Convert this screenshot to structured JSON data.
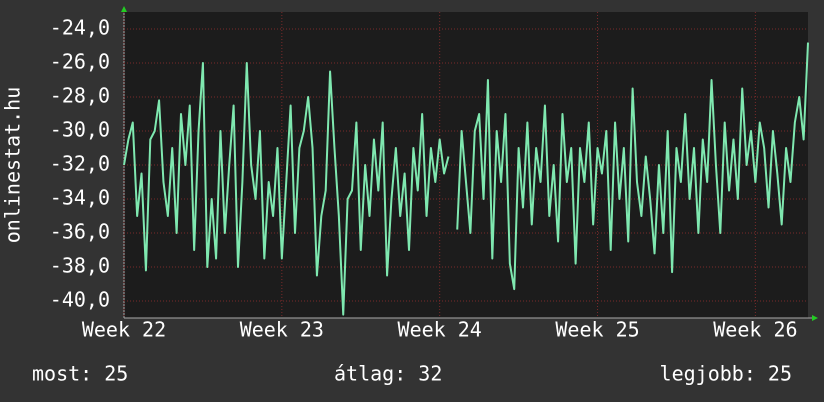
{
  "chart_data": {
    "type": "line",
    "y_label": "onlinestat.hu",
    "ylim": [
      -41,
      -23
    ],
    "yticks": [
      {
        "value": -24,
        "label": "-24,0"
      },
      {
        "value": -26,
        "label": "-26,0"
      },
      {
        "value": -28,
        "label": "-28,0"
      },
      {
        "value": -30,
        "label": "-30,0"
      },
      {
        "value": -32,
        "label": "-32,0"
      },
      {
        "value": -34,
        "label": "-34,0"
      },
      {
        "value": -36,
        "label": "-36,0"
      },
      {
        "value": -38,
        "label": "-38,0"
      },
      {
        "value": -40,
        "label": "-40,0"
      }
    ],
    "xlim": [
      0,
      156
    ],
    "xticks": [
      {
        "value": 0,
        "label": "Week 22"
      },
      {
        "value": 36,
        "label": "Week 23"
      },
      {
        "value": 72,
        "label": "Week 24"
      },
      {
        "value": 108,
        "label": "Week 25"
      },
      {
        "value": 144,
        "label": "Week 26"
      }
    ],
    "grid": true,
    "series": [
      {
        "color": "#7fe8b0",
        "values": [
          -32,
          -30.5,
          -29.5,
          -35,
          -32.5,
          -38.2,
          -30.5,
          -30,
          -28.2,
          -33,
          -35,
          -31,
          -36,
          -29,
          -32,
          -28.5,
          -37,
          -30,
          -26,
          -38,
          -34,
          -37.5,
          -30,
          -36,
          -32,
          -28.5,
          -38,
          -33,
          -26,
          -32,
          -34,
          -30,
          -37.5,
          -33,
          -35,
          -31,
          -37.5,
          -33,
          -28.5,
          -36,
          -31,
          -30,
          -28,
          -31,
          -38.5,
          -35,
          -33.5,
          -26.5,
          -31,
          -35,
          -40.8,
          -34,
          -33.5,
          -29.5,
          -37,
          -32,
          -35,
          -30.5,
          -33.5,
          -29.5,
          -38.5,
          -34,
          -31,
          -35,
          -32.5,
          -37,
          -31,
          -33.5,
          -29,
          -35,
          -31,
          -33,
          -30.5,
          -32.5,
          -31.5,
          null,
          -35.8,
          -30,
          -33,
          -36,
          -30,
          -29,
          -34,
          -27,
          -37.5,
          -30,
          -33,
          -29,
          -37.8,
          -39.3,
          -31,
          -34.5,
          -29.5,
          -35.5,
          -31,
          -33,
          -28.5,
          -35,
          -32,
          -36.5,
          -29,
          -33,
          -31,
          -37.8,
          -31,
          -33,
          -29.5,
          -35.5,
          -31,
          -32.5,
          -30,
          -37,
          -29.5,
          -34,
          -31,
          -36.5,
          -27.5,
          -33,
          -35,
          -31.5,
          -34,
          -37.2,
          -32,
          -36,
          -30,
          -38.3,
          -31,
          -33,
          -29,
          -34,
          -31,
          -36,
          -30.5,
          -33,
          -27,
          -32,
          -36,
          -29.5,
          -33.5,
          -30.5,
          -34,
          -27.5,
          -32,
          -30,
          -33,
          -29.5,
          -31,
          -34.5,
          -30,
          -32.5,
          -35.5,
          -31,
          -33,
          -29.5,
          -28,
          -30.5,
          -24.8
        ]
      }
    ]
  },
  "footer": {
    "current": "most: 25",
    "average": "átlag: 32",
    "best": "legjobb: 25"
  }
}
